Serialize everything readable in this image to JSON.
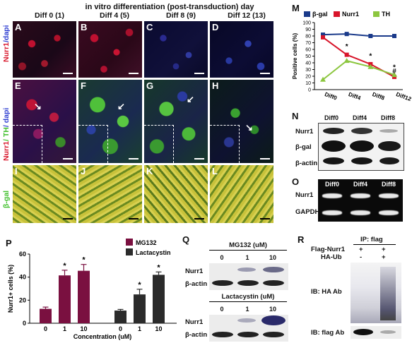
{
  "header": {
    "title": "in vitro differentiation (post-transduction) day",
    "columns": [
      "Diff 0 (1)",
      "Diff 4 (5)",
      "Diff 8 (9)",
      "Diff 12 (13)"
    ]
  },
  "row_labels": {
    "row1": {
      "a": "Nurr1",
      "b": "/dapi"
    },
    "row2": {
      "a": "Nurr1",
      "b": "/ TH",
      "c": "/ dapi"
    },
    "row3": "β-gal"
  },
  "panel_letters": [
    "A",
    "B",
    "C",
    "D",
    "E",
    "F",
    "G",
    "H",
    "I",
    "J",
    "K",
    "L"
  ],
  "colors": {
    "nurr1_red": "#d8152a",
    "dapi_blue": "#2a3ad0",
    "th_green": "#3fbf2a",
    "gal_yellow": "#c8c23a",
    "bar_maroon": "#7a1040",
    "bar_dark": "#2b2b2b"
  },
  "panel_M": {
    "letter": "M",
    "legend": [
      "β-gal",
      "Nurr1",
      "TH"
    ],
    "ylabel": "Positive cells (%)",
    "yticks": [
      "0",
      "10",
      "20",
      "30",
      "40",
      "50",
      "60",
      "70",
      "80",
      "90",
      "100"
    ],
    "xticks": [
      "Diff0",
      "Diff4",
      "Diff8",
      "Diff12"
    ],
    "annotations": [
      "*",
      "*",
      "*",
      "#"
    ]
  },
  "panel_N": {
    "letter": "N",
    "lanes": [
      "Diff0",
      "Diff4",
      "Diff8"
    ],
    "rows": [
      "Nurr1",
      "β-gal",
      "β-actin"
    ]
  },
  "panel_O": {
    "letter": "O",
    "lanes": [
      "Diff0",
      "Diff4",
      "Diff8"
    ],
    "rows": [
      "Nurr1",
      "GAPDH"
    ]
  },
  "panel_P": {
    "letter": "P",
    "legend": [
      "MG132",
      "Lactacystin"
    ],
    "ylabel": "Nurr1+ cells (%)",
    "xlabel": "Concentration (uM)",
    "yticks": [
      "0",
      "20",
      "40",
      "60"
    ],
    "xticks": [
      "0",
      "1",
      "10",
      "0",
      "1",
      "10"
    ],
    "stars": [
      "*",
      "*",
      "*",
      "*"
    ]
  },
  "panel_Q": {
    "letter": "Q",
    "top_title": "MG132 (uM)",
    "bottom_title": "Lactacystin (uM)",
    "lanes": [
      "0",
      "1",
      "10"
    ],
    "rows": [
      "Nurr1",
      "β-actin"
    ]
  },
  "panel_R": {
    "letter": "R",
    "ip": "IP: flag",
    "flag_label": "Flag-Nurr1",
    "ha_label": "HA-Ub",
    "flag_signs": [
      "+",
      "+"
    ],
    "ha_signs": [
      "-",
      "+"
    ],
    "ib1": "IB: HA Ab",
    "ib2": "IB: flag Ab"
  },
  "chart_data": [
    {
      "type": "line",
      "title": "",
      "xlabel": "",
      "ylabel": "Positive cells (%)",
      "categories": [
        "Diff0",
        "Diff4",
        "Diff8",
        "Diff12"
      ],
      "ylim": [
        0,
        100
      ],
      "series": [
        {
          "name": "β-gal",
          "values": [
            82,
            83,
            80,
            80
          ]
        },
        {
          "name": "Nurr1",
          "values": [
            78,
            52,
            38,
            19
          ]
        },
        {
          "name": "TH",
          "values": [
            15,
            43,
            34,
            22
          ]
        }
      ]
    },
    {
      "type": "bar",
      "title": "",
      "xlabel": "Concentration (uM)",
      "ylabel": "Nurr1+ cells (%)",
      "categories": [
        "0",
        "1",
        "10"
      ],
      "ylim": [
        0,
        60
      ],
      "series": [
        {
          "name": "MG132",
          "values": [
            12.5,
            41.5,
            45.5
          ],
          "errors": [
            1.5,
            4.5,
            5.5
          ]
        },
        {
          "name": "Lactacystin",
          "values": [
            11,
            25,
            42
          ],
          "errors": [
            1,
            4.5,
            2.5
          ]
        }
      ]
    }
  ]
}
